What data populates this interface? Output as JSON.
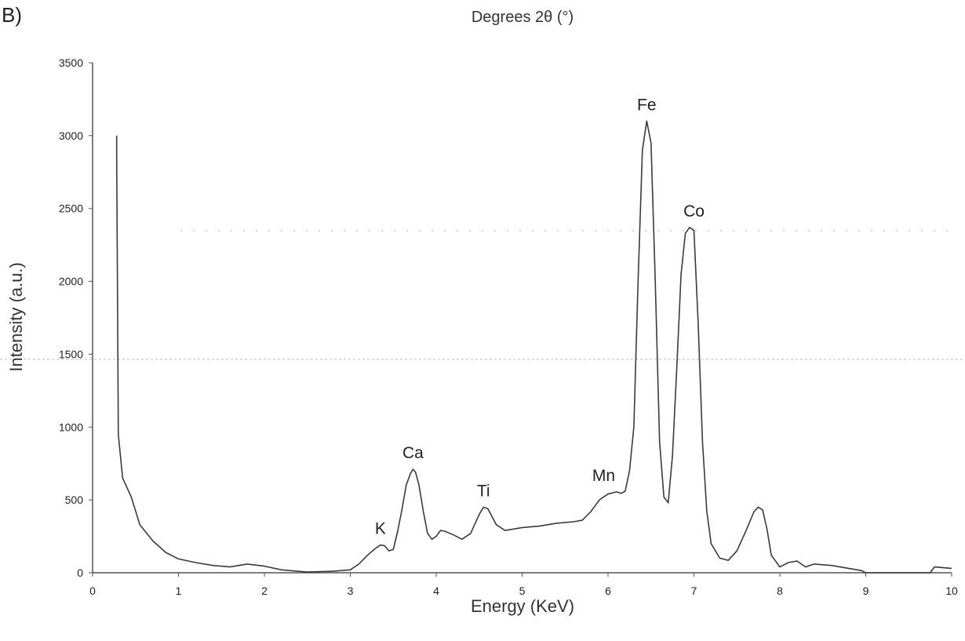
{
  "panel_label": "B)",
  "top_title": "Degrees 2θ (°)",
  "colors": {
    "line": "#3a3a3a",
    "axis": "#555555",
    "dashed": "#bdbdbd"
  },
  "chart_data": {
    "type": "line",
    "xlabel": "Energy (KeV)",
    "ylabel": "Intensity (a.u.)",
    "xlim": [
      0,
      10
    ],
    "ylim": [
      0,
      3500
    ],
    "x_ticks": [
      "0",
      "1",
      "2",
      "3",
      "4",
      "5",
      "6",
      "7",
      "8",
      "9",
      "10"
    ],
    "y_ticks": [
      "0",
      "500",
      "1000",
      "1500",
      "2000",
      "2500",
      "3000",
      "3500"
    ],
    "peak_labels": [
      {
        "label": "K",
        "x": 3.35,
        "y": 190
      },
      {
        "label": "Ca",
        "x": 3.73,
        "y": 710
      },
      {
        "label": "Ti",
        "x": 4.55,
        "y": 450
      },
      {
        "label": "Mn",
        "x": 5.95,
        "y": 555
      },
      {
        "label": "Fe",
        "x": 6.45,
        "y": 3100
      },
      {
        "label": "Co",
        "x": 7.0,
        "y": 2370
      }
    ],
    "series": [
      {
        "x": [
          0.28,
          0.28,
          0.3,
          0.35,
          0.45,
          0.55,
          0.7,
          0.85,
          1.0,
          1.2,
          1.4,
          1.6,
          1.8,
          2.0,
          2.2,
          2.5,
          2.8,
          3.0,
          3.1,
          3.2,
          3.3,
          3.35,
          3.4,
          3.45,
          3.5,
          3.55,
          3.6,
          3.65,
          3.7,
          3.73,
          3.76,
          3.8,
          3.85,
          3.9,
          3.95,
          4.0,
          4.05,
          4.1,
          4.2,
          4.3,
          4.4,
          4.5,
          4.55,
          4.6,
          4.7,
          4.8,
          4.9,
          5.0,
          5.2,
          5.4,
          5.6,
          5.7,
          5.8,
          5.9,
          6.0,
          6.1,
          6.15,
          6.2,
          6.25,
          6.3,
          6.35,
          6.4,
          6.45,
          6.5,
          6.55,
          6.6,
          6.65,
          6.7,
          6.75,
          6.8,
          6.85,
          6.9,
          6.95,
          7.0,
          7.05,
          7.1,
          7.15,
          7.2,
          7.3,
          7.4,
          7.5,
          7.6,
          7.7,
          7.75,
          7.8,
          7.85,
          7.9,
          8.0,
          8.1,
          8.2,
          8.3,
          8.4,
          8.6,
          8.8,
          8.95,
          9.0,
          9.2,
          9.5,
          9.75,
          9.8,
          10.0
        ],
        "y": [
          3000,
          2900,
          950,
          650,
          520,
          330,
          220,
          140,
          95,
          70,
          50,
          40,
          60,
          45,
          20,
          5,
          10,
          20,
          60,
          120,
          170,
          190,
          185,
          150,
          160,
          280,
          430,
          600,
          680,
          710,
          690,
          600,
          420,
          270,
          230,
          250,
          290,
          285,
          260,
          230,
          270,
          400,
          450,
          440,
          330,
          290,
          300,
          310,
          320,
          340,
          350,
          360,
          420,
          500,
          540,
          555,
          545,
          560,
          700,
          1000,
          2000,
          2900,
          3100,
          2950,
          2000,
          900,
          520,
          480,
          800,
          1400,
          2050,
          2330,
          2370,
          2350,
          1700,
          900,
          420,
          200,
          100,
          85,
          150,
          280,
          420,
          450,
          430,
          300,
          120,
          40,
          70,
          80,
          40,
          60,
          50,
          30,
          15,
          0,
          0,
          0,
          0,
          40,
          30
        ]
      }
    ]
  }
}
